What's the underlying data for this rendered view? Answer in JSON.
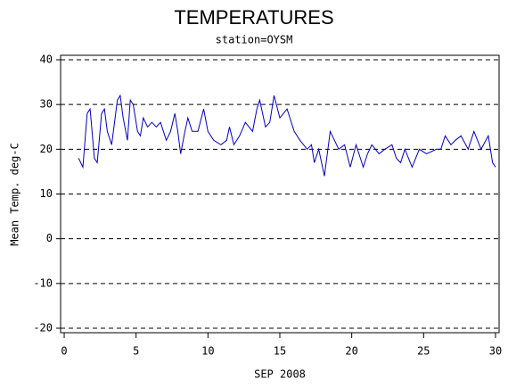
{
  "chart_data": {
    "type": "line",
    "title": "TEMPERATURES",
    "subtitle": "station=OYSM",
    "x_label": "SEP 2008",
    "y_label": "Mean Temp. deg-C",
    "x": [
      1,
      1.3,
      1.6,
      1.8,
      2.1,
      2.3,
      2.6,
      2.8,
      3.0,
      3.3,
      3.7,
      3.9,
      4.1,
      4.4,
      4.6,
      4.8,
      5.1,
      5.3,
      5.5,
      5.8,
      6.1,
      6.4,
      6.7,
      7.1,
      7.4,
      7.7,
      7.9,
      8.1,
      8.4,
      8.6,
      8.9,
      9.3,
      9.7,
      10.0,
      10.4,
      10.9,
      11.3,
      11.5,
      11.8,
      12.2,
      12.6,
      13.1,
      13.4,
      13.6,
      14.0,
      14.3,
      14.6,
      15.0,
      15.5,
      16.0,
      16.4,
      16.9,
      17.2,
      17.4,
      17.7,
      18.1,
      18.5,
      18.8,
      19.1,
      19.5,
      19.9,
      20.3,
      20.8,
      21.1,
      21.4,
      21.9,
      22.3,
      22.8,
      23.1,
      23.4,
      23.7,
      24.2,
      24.7,
      25.2,
      25.9,
      26.2,
      26.5,
      26.9,
      27.2,
      27.6,
      28.1,
      28.5,
      29.0,
      29.5,
      29.8,
      30.0
    ],
    "series": [
      {
        "name": "Mean Temp",
        "color": "#0000c0",
        "values": [
          18,
          16,
          28,
          29,
          18,
          17,
          28,
          29,
          24,
          21,
          31,
          32,
          27,
          22,
          31,
          30,
          24,
          23,
          27,
          25,
          26,
          25,
          26,
          22,
          24,
          28,
          24,
          19,
          24,
          27,
          24,
          24,
          29,
          24,
          22,
          21,
          22,
          25,
          21,
          23,
          26,
          24,
          29,
          31,
          25,
          26,
          32,
          27,
          29,
          24,
          22,
          20,
          21,
          17,
          20,
          14,
          24,
          22,
          20,
          21,
          16,
          21,
          16,
          19,
          21,
          19,
          20,
          21,
          18,
          17,
          20,
          16,
          20,
          19,
          20,
          20,
          23,
          21,
          22,
          23,
          20,
          24,
          20,
          23,
          17,
          16
        ]
      }
    ],
    "xlim": [
      -0.25,
      30.25
    ],
    "xticks": [
      0,
      5,
      10,
      15,
      20,
      25,
      30
    ],
    "ylim": [
      -21,
      41
    ],
    "yticks": [
      -20,
      -10,
      0,
      10,
      20,
      30,
      40
    ],
    "grid": true
  }
}
